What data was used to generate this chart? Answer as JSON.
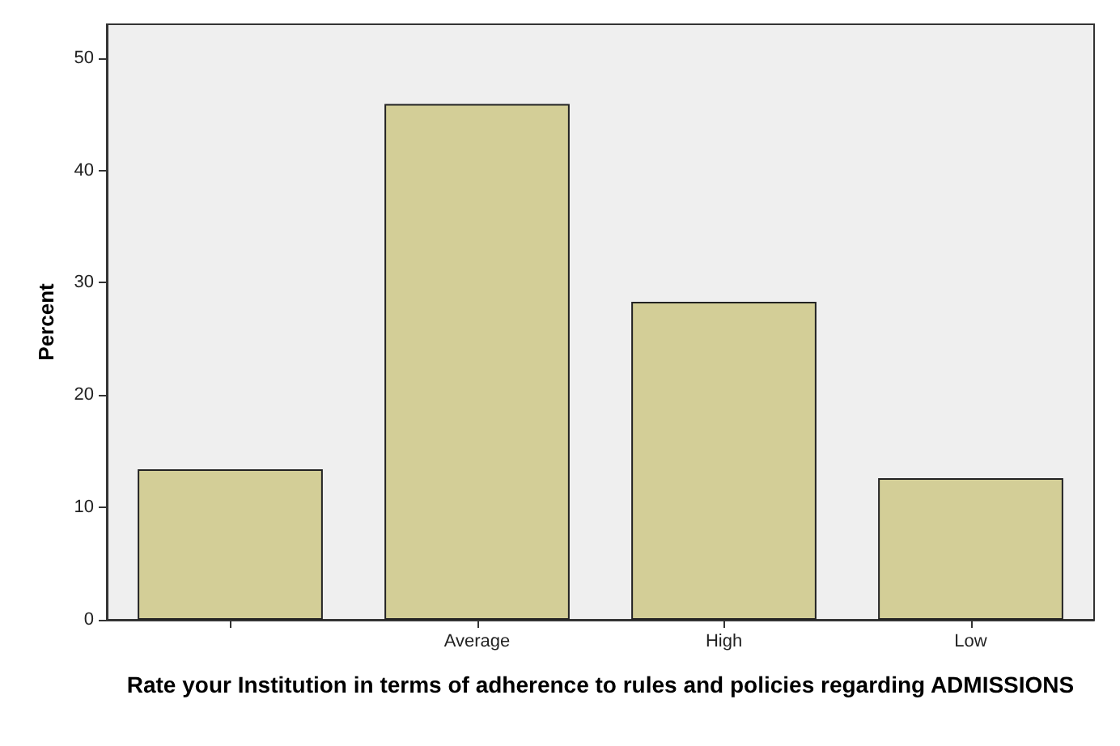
{
  "chart_data": {
    "type": "bar",
    "xlabel": "Rate your Institution in terms of adherence to rules and policies regarding ADMISSIONS",
    "ylabel": "Percent",
    "categories": [
      null,
      "Average",
      "High",
      "Low"
    ],
    "values": [
      13.4,
      45.9,
      28.3,
      12.6
    ],
    "color": "#d3ce97",
    "ylim": [
      0,
      53
    ],
    "yticks": [
      0,
      10,
      20,
      30,
      40,
      50
    ],
    "grid": false
  }
}
